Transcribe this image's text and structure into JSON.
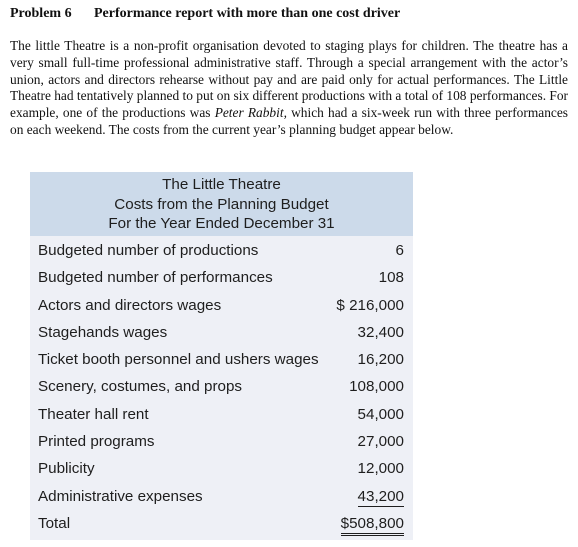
{
  "problem": {
    "number": "Problem 6",
    "title": "Performance report with more than one cost driver"
  },
  "intro": {
    "text_before": "The little Theatre is a non-profit organisation devoted to staging plays for children. The theatre has a very small full-time professional administrative staff. Through a special arrangement with the actor’s union, actors and directors rehearse without pay and are paid only for actual performances. The Little Theatre had tentatively planned to put on six different productions with a total of 108 performances. For example, one of the productions was ",
    "italic": "Peter Rabbit,",
    "text_after": " which had a six-week run with three performances on each weekend. The costs from the current year’s planning budget appear below."
  },
  "budget": {
    "title_1": "The Little Theatre",
    "title_2": "Costs from the Planning Budget",
    "title_3": "For the Year Ended December 31",
    "rows": [
      {
        "label": "Budgeted number of productions",
        "amount": "6"
      },
      {
        "label": "Budgeted number of performances",
        "amount": "108"
      },
      {
        "label": "Actors and directors wages",
        "amount": "$ 216,000"
      },
      {
        "label": "Stagehands wages",
        "amount": "32,400"
      },
      {
        "label": "Ticket booth personnel and ushers wages",
        "amount": "16,200"
      },
      {
        "label": "Scenery, costumes, and props",
        "amount": "108,000"
      },
      {
        "label": "Theater hall rent",
        "amount": "54,000"
      },
      {
        "label": "Printed programs",
        "amount": "27,000"
      },
      {
        "label": "Publicity",
        "amount": "12,000"
      },
      {
        "label": "Administrative expenses",
        "amount": "43,200"
      },
      {
        "label": "Total",
        "amount": "$508,800"
      }
    ]
  }
}
